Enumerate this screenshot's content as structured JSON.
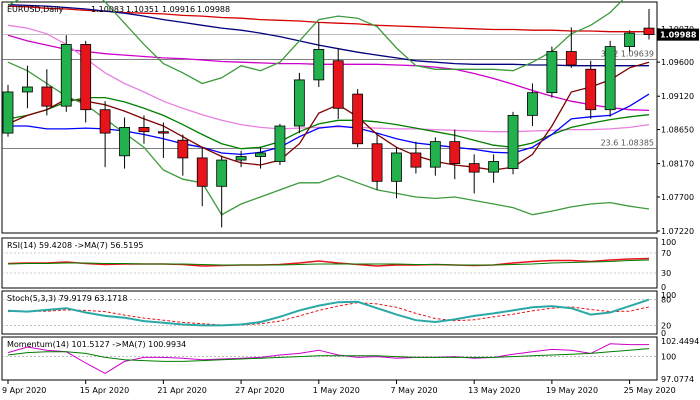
{
  "chart_data": {
    "type": "candlestick",
    "symbol": "EURUSD",
    "timeframe": "Daily",
    "header": {
      "label": "EURUSD,Daily",
      "open": "1.10083",
      "high": "1.10351",
      "low": "1.09916",
      "close": "1.09988"
    },
    "price_labels": [
      "1.10070",
      "1.09600",
      "1.09120",
      "1.08650",
      "1.08170",
      "1.07700",
      "1.07220"
    ],
    "price_ticks": [
      1.1007,
      1.096,
      1.0912,
      1.0865,
      1.0817,
      1.077,
      1.0722
    ],
    "current_price_label": "1.09988",
    "current_price": 1.09988,
    "fib_levels": [
      {
        "label": "38.2 1.09639",
        "value": 1.09639
      },
      {
        "label": "23.6 1.08385",
        "value": 1.08385
      }
    ],
    "x_labels": [
      "9 Apr 2020",
      "15 Apr 2020",
      "21 Apr 2020",
      "27 Apr 2020",
      "1 May 2020",
      "7 May 2020",
      "13 May 2020",
      "19 May 2020",
      "25 May 2020"
    ],
    "x_label_index": [
      0,
      4,
      8,
      12,
      16,
      20,
      24,
      28,
      32
    ],
    "candles": [
      {
        "o": 1.086,
        "h": 1.0928,
        "l": 1.0855,
        "c": 1.0918
      },
      {
        "o": 1.0918,
        "h": 1.0955,
        "l": 1.0895,
        "c": 1.0925
      },
      {
        "o": 1.0925,
        "h": 1.095,
        "l": 1.0885,
        "c": 1.0898
      },
      {
        "o": 1.0898,
        "h": 1.0998,
        "l": 1.089,
        "c": 1.0985
      },
      {
        "o": 1.0985,
        "h": 1.099,
        "l": 1.0875,
        "c": 1.0893
      },
      {
        "o": 1.0893,
        "h": 1.0905,
        "l": 1.0812,
        "c": 1.086
      },
      {
        "o": 1.0828,
        "h": 1.0882,
        "l": 1.081,
        "c": 1.0868
      },
      {
        "o": 1.0868,
        "h": 1.0885,
        "l": 1.0845,
        "c": 1.0862
      },
      {
        "o": 1.0862,
        "h": 1.0875,
        "l": 1.0825,
        "c": 1.086
      },
      {
        "o": 1.085,
        "h": 1.0858,
        "l": 1.08,
        "c": 1.0825
      },
      {
        "o": 1.0825,
        "h": 1.084,
        "l": 1.0757,
        "c": 1.0785
      },
      {
        "o": 1.0785,
        "h": 1.0828,
        "l": 1.0727,
        "c": 1.0822
      },
      {
        "o": 1.0822,
        "h": 1.0835,
        "l": 1.0812,
        "c": 1.0827
      },
      {
        "o": 1.0827,
        "h": 1.084,
        "l": 1.081,
        "c": 1.0832
      },
      {
        "o": 1.082,
        "h": 1.0873,
        "l": 1.0815,
        "c": 1.087
      },
      {
        "o": 1.087,
        "h": 1.0945,
        "l": 1.086,
        "c": 1.0935
      },
      {
        "o": 1.0935,
        "h": 1.1016,
        "l": 1.0925,
        "c": 1.0978
      },
      {
        "o": 1.0962,
        "h": 1.098,
        "l": 1.088,
        "c": 1.0895
      },
      {
        "o": 1.0915,
        "h": 1.0922,
        "l": 1.084,
        "c": 1.0845
      },
      {
        "o": 1.0845,
        "h": 1.086,
        "l": 1.078,
        "c": 1.0792
      },
      {
        "o": 1.0792,
        "h": 1.084,
        "l": 1.0768,
        "c": 1.0832
      },
      {
        "o": 1.0832,
        "h": 1.0848,
        "l": 1.0803,
        "c": 1.0812
      },
      {
        "o": 1.0812,
        "h": 1.0854,
        "l": 1.08,
        "c": 1.0848
      },
      {
        "o": 1.0848,
        "h": 1.0865,
        "l": 1.0795,
        "c": 1.0817
      },
      {
        "o": 1.0817,
        "h": 1.083,
        "l": 1.0775,
        "c": 1.0805
      },
      {
        "o": 1.0805,
        "h": 1.083,
        "l": 1.079,
        "c": 1.082
      },
      {
        "o": 1.081,
        "h": 1.089,
        "l": 1.0802,
        "c": 1.0885
      },
      {
        "o": 1.0885,
        "h": 1.093,
        "l": 1.087,
        "c": 1.0917
      },
      {
        "o": 1.0917,
        "h": 1.0982,
        "l": 1.091,
        "c": 1.0975
      },
      {
        "o": 1.0975,
        "h": 1.1009,
        "l": 1.0952,
        "c": 1.0956
      },
      {
        "o": 1.095,
        "h": 1.0962,
        "l": 1.088,
        "c": 1.0893
      },
      {
        "o": 1.0893,
        "h": 1.099,
        "l": 1.0883,
        "c": 1.0982
      },
      {
        "o": 1.0982,
        "h": 1.1005,
        "l": 1.0975,
        "c": 1.1001
      },
      {
        "o": 1.1008,
        "h": 1.1035,
        "l": 1.0992,
        "c": 1.0999
      }
    ],
    "overlays": [
      {
        "color": "#d40000",
        "values": [
          1.1039,
          1.1038,
          1.1036,
          1.1035,
          1.1033,
          1.1032,
          1.103,
          1.1029,
          1.1028,
          1.1026,
          1.1025,
          1.1023,
          1.1022,
          1.102,
          1.1019,
          1.1018,
          1.1016,
          1.1015,
          1.1014,
          1.1012,
          1.1011,
          1.101,
          1.1009,
          1.1008,
          1.1007,
          1.1006,
          1.1006,
          1.1005,
          1.1005,
          1.1004,
          1.1004,
          1.1003,
          1.1003,
          1.1003
        ]
      },
      {
        "color": "#00007f",
        "values": [
          1.1041,
          1.104,
          1.1039,
          1.1037,
          1.1035,
          1.1032,
          1.1029,
          1.1025,
          1.102,
          1.1016,
          1.1012,
          1.1008,
          1.1005,
          1.1001,
          1.0996,
          1.099,
          1.0984,
          1.0979,
          1.0974,
          1.097,
          1.0966,
          1.0962,
          1.096,
          1.0958,
          1.0957,
          1.0957,
          1.0957,
          1.0956,
          1.0956,
          1.0955,
          1.0955,
          1.0955,
          1.0955,
          1.0955
        ]
      },
      {
        "color": "#cc00cc",
        "values": [
          1.0998,
          1.099,
          1.0984,
          1.0978,
          1.0975,
          1.0972,
          1.097,
          1.0968,
          1.0966,
          1.0965,
          1.0963,
          1.0961,
          1.096,
          1.0959,
          1.0958,
          1.0958,
          1.0957,
          1.0957,
          1.0957,
          1.0957,
          1.0956,
          1.0955,
          1.0953,
          1.095,
          1.0944,
          1.0937,
          1.0929,
          1.092,
          1.0912,
          1.0905,
          1.09,
          1.0896,
          1.0893,
          1.0892
        ]
      },
      {
        "color": "#e87fe0",
        "values": [
          1.1012,
          1.1008,
          1.1,
          1.0985,
          1.0965,
          1.0945,
          1.093,
          1.0918,
          1.0905,
          1.0895,
          1.0886,
          1.0878,
          1.0872,
          1.0868,
          1.0866,
          1.0867,
          1.0868,
          1.0869,
          1.0868,
          1.0867,
          1.0866,
          1.0866,
          1.0865,
          1.0864,
          1.0863,
          1.0862,
          1.0862,
          1.0863,
          1.0864,
          1.0865,
          1.0865,
          1.0866,
          1.0868,
          1.0872
        ]
      },
      {
        "color": "#007f00",
        "values": [
          1.088,
          1.0885,
          1.0893,
          1.0904,
          1.091,
          1.091,
          1.0904,
          1.0895,
          1.0885,
          1.0872,
          1.0858,
          1.0845,
          1.0838,
          1.084,
          1.0848,
          1.0862,
          1.0873,
          1.0878,
          1.0878,
          1.0876,
          1.0872,
          1.0867,
          1.0862,
          1.0857,
          1.085,
          1.0843,
          1.084,
          1.0846,
          1.0858,
          1.0868,
          1.0874,
          1.0879,
          1.0883,
          1.0886
        ]
      },
      {
        "color": "#0000ff",
        "values": [
          1.087,
          1.087,
          1.0866,
          1.0866,
          1.0867,
          1.0866,
          1.0863,
          1.0858,
          1.0852,
          1.0845,
          1.084,
          1.0832,
          1.083,
          1.0833,
          1.084,
          1.0855,
          1.0867,
          1.087,
          1.0867,
          1.086,
          1.0852,
          1.0846,
          1.0843,
          1.084,
          1.0837,
          1.0833,
          1.0832,
          1.084,
          1.0858,
          1.088,
          1.0883,
          1.0885,
          1.0898,
          1.0915
        ]
      },
      {
        "color": "#7f0000",
        "values": [
          1.0873,
          1.0885,
          1.0893,
          1.0908,
          1.0905,
          1.09,
          1.0891,
          1.088,
          1.087,
          1.0855,
          1.084,
          1.0827,
          1.0818,
          1.0815,
          1.0822,
          1.0845,
          1.0888,
          1.09,
          1.0883,
          1.0858,
          1.084,
          1.0828,
          1.082,
          1.0815,
          1.0812,
          1.0808,
          1.0812,
          1.083,
          1.087,
          1.0918,
          1.0925,
          1.0935,
          1.0952,
          1.096
        ]
      },
      {
        "color": "#3c9a3c",
        "values": [
          1.096,
          1.0948,
          1.093,
          1.0912,
          1.09,
          1.088,
          1.086,
          1.084,
          1.0808,
          1.0795,
          1.079,
          1.0745,
          1.076,
          1.077,
          1.078,
          1.079,
          1.079,
          1.08,
          1.079,
          1.078,
          1.0775,
          1.077,
          1.0768,
          1.077,
          1.0765,
          1.076,
          1.0755,
          1.0745,
          1.075,
          1.0756,
          1.076,
          1.0762,
          1.0757,
          1.0753
        ]
      },
      {
        "color": "#3c9a3c",
        "values": [
          1.104,
          1.1055,
          1.106,
          1.1082,
          1.107,
          1.1045,
          1.1015,
          1.0985,
          1.0958,
          1.0945,
          1.093,
          1.0938,
          1.0955,
          1.0948,
          1.096,
          1.099,
          1.102,
          1.1025,
          1.1022,
          1.101,
          1.098,
          1.0955,
          1.095,
          1.095,
          1.095,
          1.095,
          1.0948,
          1.096,
          1.0975,
          1.1,
          1.1012,
          1.103,
          1.1058,
          1.106
        ]
      }
    ],
    "rsi": {
      "label": "RSI(14) 59.4208 ->MA(7) 56.5195",
      "axis_labels": [
        "100",
        "70",
        "30",
        "0"
      ],
      "levels": [
        100,
        70,
        30,
        0
      ],
      "rsi_values": [
        49,
        50,
        50,
        52,
        49,
        47,
        48,
        48,
        48,
        47,
        44,
        45,
        46,
        46,
        47,
        50,
        54,
        50,
        47,
        44,
        46,
        46,
        47,
        46,
        45,
        46,
        50,
        53,
        55,
        55,
        53,
        56,
        58,
        59
      ],
      "ma_values": [
        48,
        49,
        49,
        50,
        50,
        49,
        49,
        48,
        48,
        48,
        47,
        46,
        46,
        46,
        46,
        47,
        48,
        48,
        48,
        48,
        48,
        47,
        47,
        46,
        46,
        46,
        47,
        48,
        50,
        51,
        52,
        53,
        55,
        56
      ]
    },
    "stoch": {
      "label": "Stoch(5,3,3) 79.9179 63.1718",
      "axis_labels": [
        "100",
        "80",
        "20",
        "0"
      ],
      "levels": [
        100,
        80,
        20,
        0
      ],
      "k_values": [
        54,
        52,
        56,
        60,
        50,
        42,
        38,
        30,
        26,
        22,
        20,
        20,
        22,
        28,
        40,
        55,
        66,
        74,
        75,
        60,
        45,
        32,
        28,
        34,
        42,
        48,
        55,
        62,
        65,
        60,
        45,
        50,
        65,
        80
      ],
      "d_values": [
        52,
        53,
        53,
        56,
        55,
        52,
        44,
        37,
        32,
        27,
        24,
        21,
        21,
        24,
        30,
        42,
        55,
        65,
        73,
        70,
        62,
        48,
        36,
        31,
        33,
        40,
        46,
        54,
        60,
        63,
        57,
        52,
        53,
        63
      ]
    },
    "momentum": {
      "label": "Momentum(14) 101.5127 ->MA(7) 100.9934",
      "axis_labels": [
        "102.4494",
        "100",
        "97.0774"
      ],
      "levels": [
        102.4494,
        100,
        97.0774
      ],
      "mom_values": [
        100.5,
        101.2,
        100.8,
        100.6,
        99.2,
        97.9,
        99.4,
        99.9,
        99.9,
        99.8,
        99.6,
        99.7,
        99.8,
        99.9,
        100.2,
        100.4,
        100.8,
        100.2,
        99.9,
        100.0,
        99.8,
        99.9,
        99.9,
        100.0,
        99.8,
        99.9,
        100.3,
        100.6,
        100.9,
        100.8,
        100.4,
        101.6,
        101.5,
        101.5
      ],
      "ma_values": [
        100.2,
        100.5,
        100.6,
        100.6,
        100.4,
        99.9,
        99.6,
        99.5,
        99.4,
        99.4,
        99.5,
        99.6,
        99.7,
        99.8,
        99.9,
        100.0,
        100.1,
        100.1,
        100.1,
        100.1,
        100.0,
        99.9,
        99.9,
        99.9,
        99.9,
        99.9,
        100.0,
        100.1,
        100.2,
        100.3,
        100.4,
        100.6,
        100.8,
        101.0
      ]
    }
  }
}
